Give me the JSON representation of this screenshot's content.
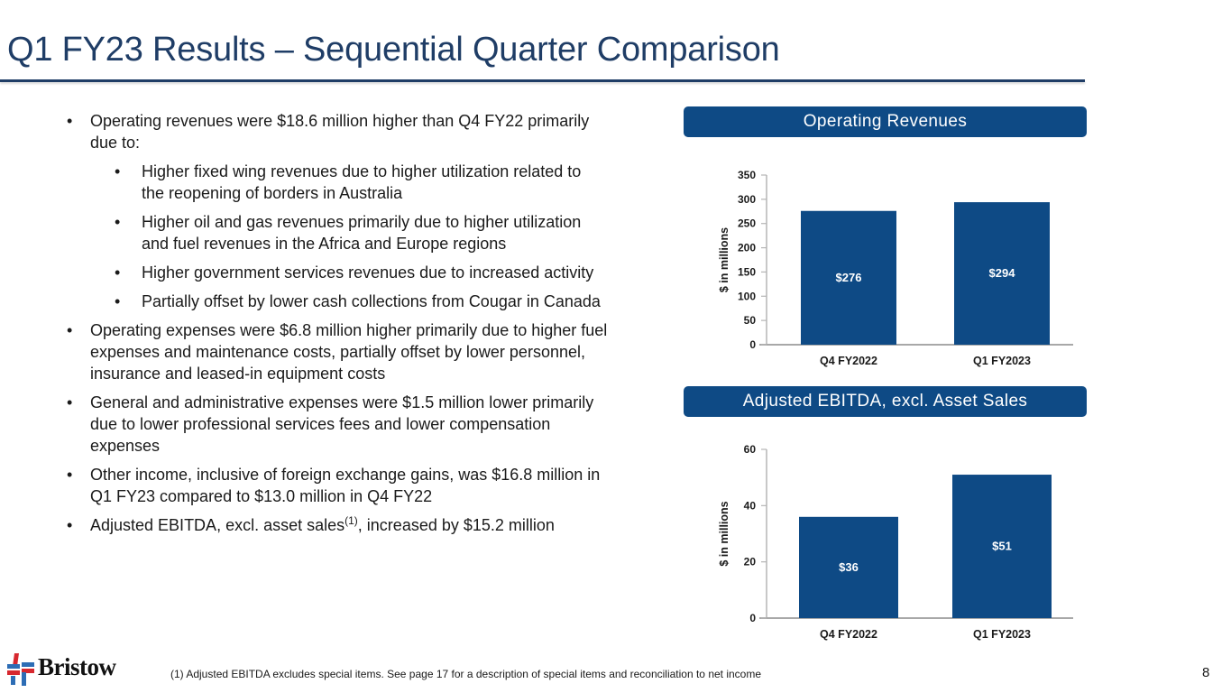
{
  "slide": {
    "title": "Q1 FY23 Results – Sequential Quarter Comparison",
    "page_number": "8",
    "footnote": "(1)  Adjusted EBITDA excludes special items. See page 17 for a description of special items and reconciliation to net income",
    "logo_text": "Bristow",
    "colors": {
      "title": "#1f3d66",
      "bar": "#0e4a85",
      "header_bg": "#0e4a85",
      "logo_red": "#d7282f",
      "logo_blue": "#2d6db5"
    }
  },
  "bullets": [
    {
      "level": 1,
      "text": "Operating revenues were $18.6 million higher than Q4 FY22 primarily due to:"
    },
    {
      "level": 2,
      "text": "Higher fixed wing revenues due to higher utilization related to the reopening of borders in Australia"
    },
    {
      "level": 2,
      "text": "Higher oil and gas revenues primarily due to higher utilization and fuel revenues in the Africa and Europe regions"
    },
    {
      "level": 2,
      "text": "Higher government services revenues due to increased activity"
    },
    {
      "level": 2,
      "text": "Partially offset by lower cash collections from Cougar in Canada"
    },
    {
      "level": 1,
      "text": "Operating expenses were $6.8 million higher primarily due to higher fuel expenses and maintenance costs, partially offset by lower personnel, insurance and leased-in equipment costs"
    },
    {
      "level": 1,
      "text": "General and administrative expenses were $1.5 million lower primarily due to lower professional services fees and lower compensation expenses"
    },
    {
      "level": 1,
      "text": "Other income, inclusive of foreign exchange gains, was $16.8 million in Q1 FY23 compared to $13.0 million in Q4 FY22"
    },
    {
      "level": 1,
      "text": "Adjusted EBITDA, excl. asset sales",
      "sup": "(1)",
      "text_after": ", increased by $15.2 million"
    }
  ],
  "chart_data": [
    {
      "type": "bar",
      "title": "Operating Revenues",
      "categories": [
        "Q4 FY2022",
        "Q1 FY2023"
      ],
      "values": [
        276,
        294
      ],
      "data_labels": [
        "$276",
        "$294"
      ],
      "xlabel": "",
      "ylabel": "$ in millions",
      "ylim": [
        0,
        350
      ],
      "yticks": [
        0,
        50,
        100,
        150,
        200,
        250,
        300,
        350
      ],
      "grid": false,
      "legend": "none"
    },
    {
      "type": "bar",
      "title": "Adjusted EBITDA, excl. Asset Sales",
      "categories": [
        "Q4 FY2022",
        "Q1 FY2023"
      ],
      "values": [
        36,
        51
      ],
      "data_labels": [
        "$36",
        "$51"
      ],
      "xlabel": "",
      "ylabel": "$ in millions",
      "ylim": [
        0,
        60
      ],
      "yticks": [
        0,
        20,
        40,
        60
      ],
      "grid": false,
      "legend": "none"
    }
  ]
}
